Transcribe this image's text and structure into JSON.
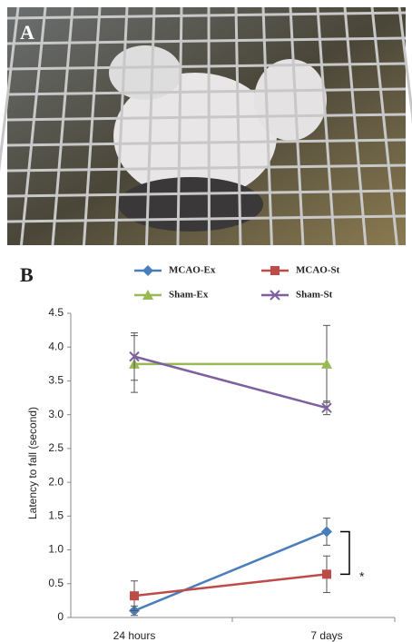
{
  "panel_labels": [
    "A",
    "B"
  ],
  "chart_data": {
    "type": "line",
    "y_label": "Latency to fall (second)",
    "categories": [
      "24 hours",
      "7 days"
    ],
    "series": [
      {
        "name": "MCAO-Ex",
        "color": "#4a7ebb",
        "marker": "diamond",
        "values": [
          0.1,
          1.27
        ],
        "errors": [
          0.07,
          0.2
        ]
      },
      {
        "name": "MCAO-St",
        "color": "#be4b48",
        "marker": "square",
        "values": [
          0.32,
          0.64
        ],
        "errors": [
          0.22,
          0.27
        ]
      },
      {
        "name": "Sham-Ex",
        "color": "#98b954",
        "marker": "triangle",
        "values": [
          3.75,
          3.75
        ],
        "errors": [
          0.42,
          0.57
        ]
      },
      {
        "name": "Sham-St",
        "color": "#7d60a0",
        "marker": "x",
        "values": [
          3.86,
          3.1
        ],
        "errors": [
          0.35,
          0.1
        ]
      }
    ],
    "ylim": [
      0,
      4.5
    ],
    "yticks": [
      0,
      0.5,
      {
        "value": 1,
        "label": "1.0"
      },
      1.5,
      {
        "value": 2,
        "label": "2.0"
      },
      2.5,
      {
        "value": 3,
        "label": "3.0"
      },
      3.5,
      {
        "value": 4,
        "label": "4.0"
      },
      4.5
    ],
    "annotation": "*",
    "grid": false
  }
}
